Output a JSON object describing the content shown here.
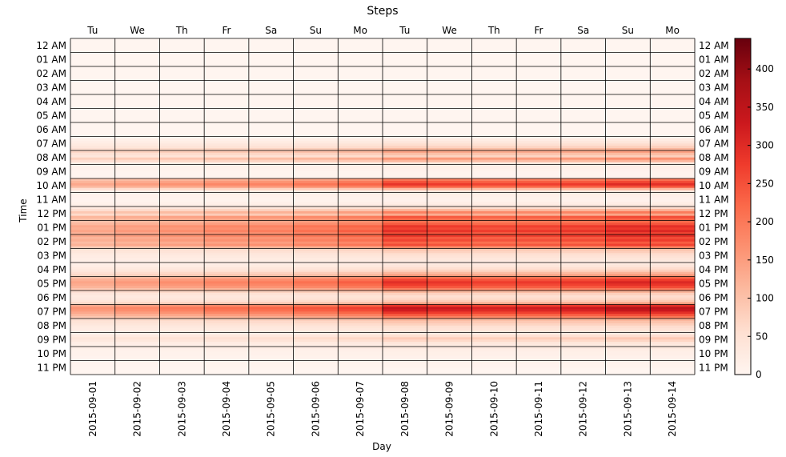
{
  "chart_data": {
    "type": "heatmap",
    "title": "Steps",
    "xlabel": "Day",
    "ylabel": "Time",
    "colormap": "Reds",
    "colorbar": {
      "min": 0,
      "max": 440,
      "ticks": [
        0,
        50,
        100,
        150,
        200,
        250,
        300,
        350,
        400
      ]
    },
    "x_dates": [
      "2015-09-01",
      "2015-09-02",
      "2015-09-03",
      "2015-09-04",
      "2015-09-05",
      "2015-09-06",
      "2015-09-07",
      "2015-09-08",
      "2015-09-09",
      "2015-09-10",
      "2015-09-11",
      "2015-09-12",
      "2015-09-13",
      "2015-09-14"
    ],
    "x_weekdays": [
      "Tu",
      "We",
      "Th",
      "Fr",
      "Sa",
      "Su",
      "Mo",
      "Tu",
      "We",
      "Th",
      "Fr",
      "Sa",
      "Su",
      "Mo"
    ],
    "y_hours": [
      "12 AM",
      "01 AM",
      "02 AM",
      "03 AM",
      "04 AM",
      "05 AM",
      "06 AM",
      "07 AM",
      "08 AM",
      "09 AM",
      "10 AM",
      "11 AM",
      "12 PM",
      "01 PM",
      "02 PM",
      "03 PM",
      "04 PM",
      "05 PM",
      "06 PM",
      "07 PM",
      "08 PM",
      "09 PM",
      "10 PM",
      "11 PM"
    ],
    "grid": true,
    "daily_scale": [
      0.45,
      0.5,
      0.55,
      0.6,
      0.62,
      0.68,
      0.75,
      0.95,
      0.92,
      0.88,
      0.9,
      0.92,
      1.0,
      0.98
    ],
    "hourly_profile": [
      [
        0,
        0,
        0,
        0,
        0,
        0
      ],
      [
        0,
        0,
        0,
        0,
        0,
        0
      ],
      [
        0,
        0,
        0,
        0,
        0,
        0
      ],
      [
        0,
        0,
        0,
        0,
        0,
        0
      ],
      [
        0,
        0,
        0,
        0,
        0,
        0
      ],
      [
        0,
        0,
        0,
        0,
        0,
        0
      ],
      [
        0,
        0,
        0,
        0,
        0,
        0
      ],
      [
        10,
        25,
        40,
        60,
        80,
        120
      ],
      [
        150,
        110,
        80,
        170,
        120,
        40
      ],
      [
        20,
        15,
        10,
        5,
        5,
        5
      ],
      [
        210,
        260,
        300,
        250,
        120,
        40
      ],
      [
        20,
        15,
        10,
        10,
        20,
        30
      ],
      [
        60,
        120,
        200,
        140,
        260,
        230
      ],
      [
        220,
        250,
        300,
        280,
        310,
        270
      ],
      [
        300,
        260,
        280,
        240,
        270,
        190
      ],
      [
        100,
        80,
        60,
        50,
        40,
        30
      ],
      [
        30,
        40,
        60,
        80,
        120,
        160
      ],
      [
        230,
        280,
        310,
        290,
        260,
        200
      ],
      [
        120,
        80,
        60,
        70,
        90,
        150
      ],
      [
        300,
        360,
        340,
        300,
        250,
        200
      ],
      [
        120,
        100,
        80,
        60,
        50,
        40
      ],
      [
        30,
        60,
        90,
        70,
        40,
        30
      ],
      [
        30,
        20,
        15,
        15,
        10,
        10
      ],
      [
        10,
        5,
        5,
        0,
        0,
        0
      ]
    ]
  }
}
